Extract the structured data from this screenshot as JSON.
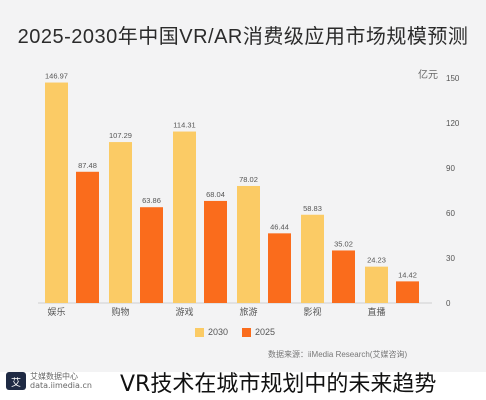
{
  "chart_data": {
    "type": "bar",
    "title": "2025-2030年中国VR/AR消费级应用市场规模预测",
    "unit": "亿元",
    "categories": [
      "娱乐",
      "购物",
      "游戏",
      "旅游",
      "影视",
      "直播"
    ],
    "series": [
      {
        "name": "2030",
        "color": "#fbcb65",
        "values": [
          146.97,
          107.29,
          114.31,
          78.02,
          58.83,
          24.23
        ]
      },
      {
        "name": "2025",
        "color": "#fa6c1c",
        "values": [
          87.48,
          63.86,
          68.04,
          46.44,
          35.02,
          14.42
        ]
      }
    ],
    "yticks": [
      0,
      30,
      60,
      90,
      120,
      150
    ],
    "ylim": [
      0,
      150
    ],
    "grid": false,
    "legend_position": "bottom"
  },
  "source": "数据来源：iiMedia Research(艾媒咨询)",
  "logo": {
    "mark": "艾",
    "line1": "艾媒数据中心",
    "line2": "data.iimedia.cn"
  },
  "caption": "VR技术在城市规划中的未来趋势"
}
